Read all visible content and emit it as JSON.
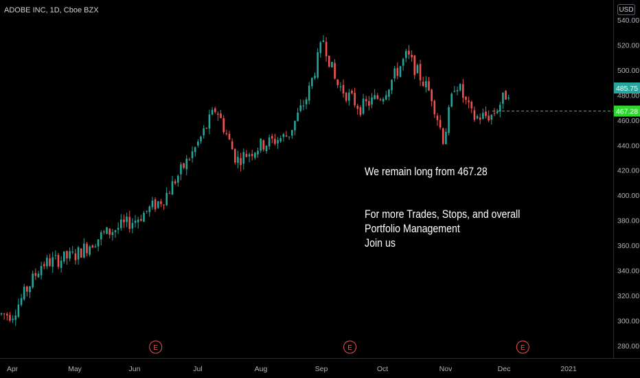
{
  "header": {
    "symbol": "ADOBE INC, 1D, Cboe BZX",
    "currency": "USD"
  },
  "annotations": {
    "line1": "We remain long from 467.28",
    "line2": "For more Trades, Stops, and overall",
    "line3": "Portfolio Management",
    "line4": "Join us"
  },
  "chart_data": {
    "type": "candlestick",
    "title": "ADOBE INC, 1D, Cboe BZX",
    "ylim": [
      270,
      556
    ],
    "y_ticks": [
      280,
      300,
      320,
      340,
      360,
      380,
      400,
      420,
      440,
      460,
      480,
      500,
      520,
      540
    ],
    "x_ticks": [
      "Apr",
      "May",
      "Jun",
      "Jul",
      "Aug",
      "Sep",
      "Oct",
      "Nov",
      "Dec",
      "2021"
    ],
    "colors": {
      "up": "#26a69a",
      "down": "#ef5350",
      "entry": "#2bd82b",
      "last": "#26a69a",
      "earnings": "#ef5350"
    },
    "last_price": {
      "value": 485.75,
      "label": "485.75"
    },
    "entry_line": {
      "value": 467.28,
      "label": "467.28"
    },
    "earnings_markers": {
      "label": "E",
      "dates": [
        "Jun 11",
        "Sep 15",
        "Dec 10"
      ]
    },
    "trend_points": [
      {
        "date": "Apr 1",
        "close": 305
      },
      {
        "date": "Apr 15",
        "close": 345
      },
      {
        "date": "May 1",
        "close": 352
      },
      {
        "date": "May 15",
        "close": 368
      },
      {
        "date": "Jun 1",
        "close": 380
      },
      {
        "date": "Jun 15",
        "close": 398
      },
      {
        "date": "Jun 30",
        "close": 438
      },
      {
        "date": "Jul 10",
        "close": 470
      },
      {
        "date": "Jul 20",
        "close": 428
      },
      {
        "date": "Aug 1",
        "close": 440
      },
      {
        "date": "Aug 15",
        "close": 448
      },
      {
        "date": "Aug 25",
        "close": 480
      },
      {
        "date": "Sep 2",
        "close": 525
      },
      {
        "date": "Sep 8",
        "close": 490
      },
      {
        "date": "Sep 20",
        "close": 470
      },
      {
        "date": "Oct 1",
        "close": 480
      },
      {
        "date": "Oct 13",
        "close": 512
      },
      {
        "date": "Oct 25",
        "close": 480
      },
      {
        "date": "Oct 31",
        "close": 444
      },
      {
        "date": "Nov 6",
        "close": 492
      },
      {
        "date": "Nov 15",
        "close": 462
      },
      {
        "date": "Nov 25",
        "close": 464
      },
      {
        "date": "Dec 4",
        "close": 485.75
      }
    ]
  }
}
